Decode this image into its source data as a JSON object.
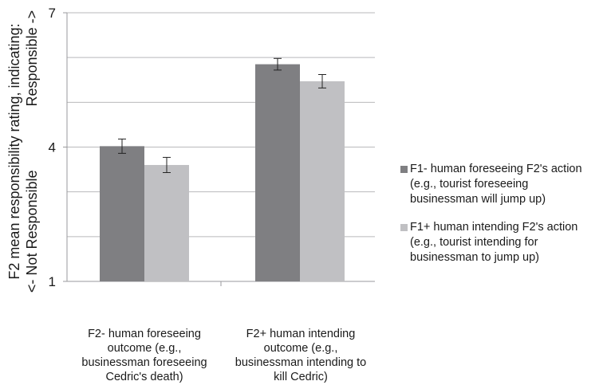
{
  "chart_data": {
    "type": "bar",
    "title": "",
    "ylabel_line1": "F2 mean responsibility rating, indicating:",
    "ylabel_line2": "<- Not Responsible                Responsible ->",
    "ylim": [
      1,
      7
    ],
    "yticks": [
      1,
      4,
      7
    ],
    "gridlines": [
      1,
      2,
      3,
      4,
      5,
      6,
      7
    ],
    "grid": true,
    "legend_position": "right",
    "categories": [
      "F2-  human foreseeing outcome (e.g., businessman foreseeing Cedric's death)",
      "F2+  human intending outcome (e.g., businessman intending to kill Cedric)"
    ],
    "category_lines": [
      [
        "F2-  human foreseeing",
        "outcome (e.g.,",
        "businessman foreseeing",
        "Cedric's death)"
      ],
      [
        "F2+  human intending",
        "outcome (e.g.,",
        "businessman intending to",
        "kill Cedric)"
      ]
    ],
    "series": [
      {
        "name": "F1-  human foreseeing F2's action (e.g., tourist foreseeing businessman will jump up)",
        "name_lines": [
          "F1-  human foreseeing F2's action",
          "(e.g., tourist foreseeing",
          "businessman will jump up)"
        ],
        "color": "#7f7f82",
        "values": [
          4.02,
          5.85
        ],
        "errors": [
          0.16,
          0.13
        ]
      },
      {
        "name": "F1+  human intending F2's action (e.g., tourist intending for businessman to jump up)",
        "name_lines": [
          "F1+  human intending F2's action",
          "(e.g., tourist intending for",
          "businessman to jump up)"
        ],
        "color": "#c0c0c3",
        "values": [
          3.6,
          5.47
        ],
        "errors": [
          0.17,
          0.15
        ]
      }
    ]
  }
}
